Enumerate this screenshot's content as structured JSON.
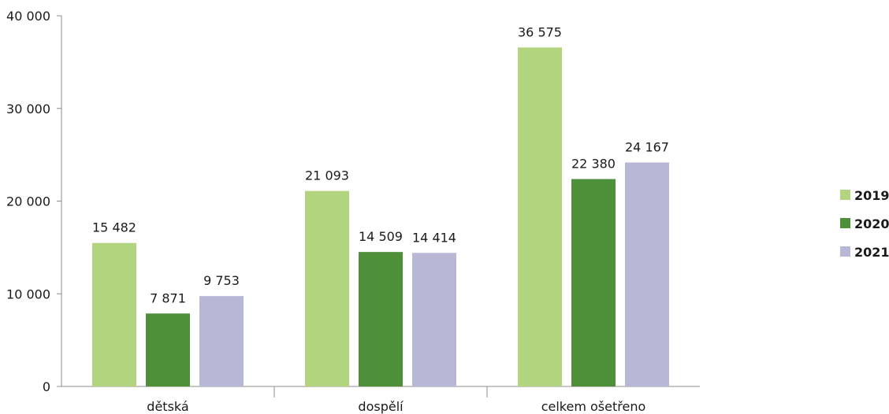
{
  "chart_data": {
    "type": "bar",
    "categories": [
      "dětská",
      "dospělí",
      "celkem ošetřeno"
    ],
    "series": [
      {
        "name": "2019",
        "color": "#b3d47e",
        "values": [
          15482,
          21093,
          36575
        ],
        "labels": [
          "15 482",
          "21 093",
          "36 575"
        ]
      },
      {
        "name": "2020",
        "color": "#4e8f3a",
        "values": [
          7871,
          14509,
          22380
        ],
        "labels": [
          "7 871",
          "14 509",
          "22 380"
        ]
      },
      {
        "name": "2021",
        "color": "#b8b8d6",
        "values": [
          9753,
          14414,
          24167
        ],
        "labels": [
          "9 753",
          "14 414",
          "24 167"
        ]
      }
    ],
    "ylim": [
      0,
      40000
    ],
    "yticks": [
      {
        "value": 0,
        "label": "0"
      },
      {
        "value": 10000,
        "label": "10 000"
      },
      {
        "value": 20000,
        "label": "20 000"
      },
      {
        "value": 30000,
        "label": "30 000"
      },
      {
        "value": 40000,
        "label": "40 000"
      }
    ],
    "grid": false,
    "legend_position": "right"
  }
}
